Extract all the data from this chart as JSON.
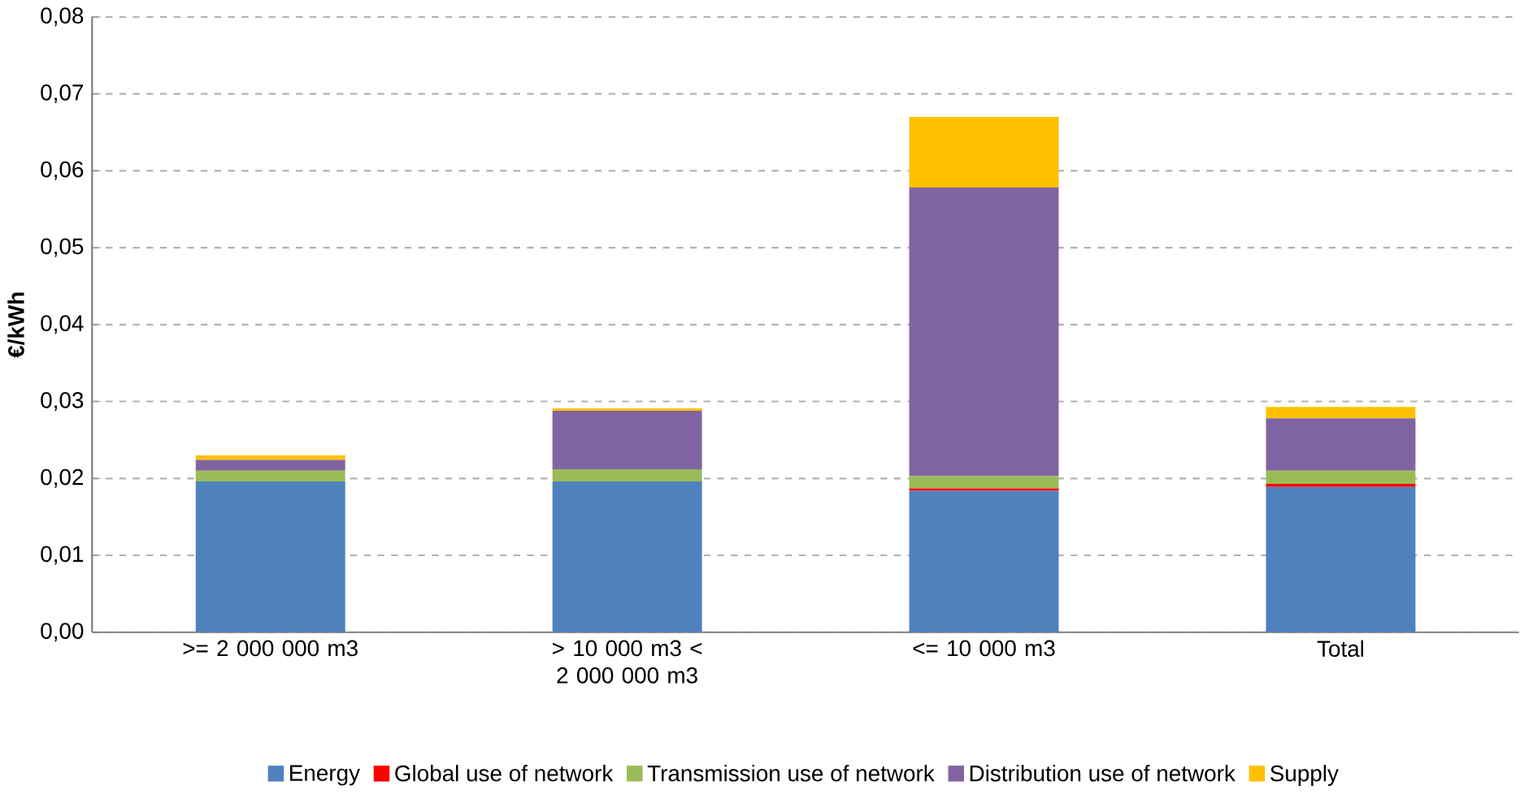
{
  "chart_data": {
    "type": "bar",
    "stacked": true,
    "ylabel": "€/kWh",
    "categories": [
      ">= 2 000 000 m3",
      "> 10 000 m3 < 2 000 000 m3",
      "<= 10 000 m3",
      "Total"
    ],
    "series": [
      {
        "name": "Energy",
        "color": "#4f81bd",
        "values": [
          0.0196,
          0.0196,
          0.0184,
          0.0189
        ]
      },
      {
        "name": "Global use of network",
        "color": "#ff0000",
        "values": [
          0,
          0,
          0.0003,
          0.0004
        ]
      },
      {
        "name": "Transmission use of network",
        "color": "#9bbb59",
        "values": [
          0.0014,
          0.0016,
          0.0016,
          0.0017
        ]
      },
      {
        "name": "Distribution use of network",
        "color": "#8064a2",
        "values": [
          0.0014,
          0.0076,
          0.0375,
          0.0068
        ]
      },
      {
        "name": "Supply",
        "color": "#ffc000",
        "values": [
          0.0006,
          0.0003,
          0.0092,
          0.0015
        ]
      }
    ],
    "ylim": [
      0,
      0.08
    ],
    "yticks": [
      {
        "value": 0,
        "label": "0,00"
      },
      {
        "value": 0.01,
        "label": "0,01"
      },
      {
        "value": 0.02,
        "label": "0,02"
      },
      {
        "value": 0.03,
        "label": "0,03"
      },
      {
        "value": 0.04,
        "label": "0,04"
      },
      {
        "value": 0.05,
        "label": "0,05"
      },
      {
        "value": 0.06,
        "label": "0,06"
      },
      {
        "value": 0.07,
        "label": "0,07"
      },
      {
        "value": 0.08,
        "label": "0,08"
      }
    ],
    "grid": "y",
    "legend": "bottom"
  }
}
